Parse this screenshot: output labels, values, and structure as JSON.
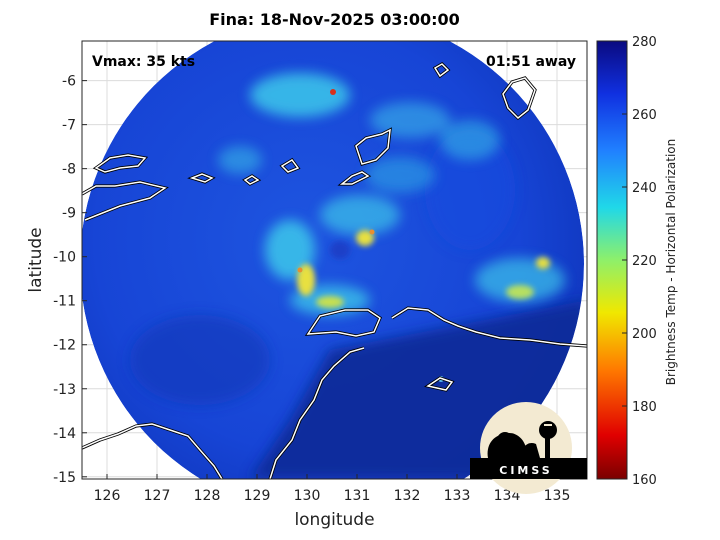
{
  "title": "Fina: 18-Nov-2025 03:00:00",
  "vmax_label": "Vmax: 35 kts",
  "away_label": "01:51 away",
  "xlabel": "longitude",
  "ylabel": "latitude",
  "colorbar": {
    "label": "Brightness Temp - Horizontal Polarization",
    "min": 160,
    "max": 280,
    "ticks": [
      "160",
      "180",
      "200",
      "220",
      "240",
      "260",
      "280"
    ]
  },
  "axes": {
    "xlim": [
      125.5,
      135.6
    ],
    "ylim": [
      -15.05,
      -5.1
    ],
    "xticks": [
      "126",
      "127",
      "128",
      "129",
      "130",
      "131",
      "132",
      "133",
      "134",
      "135"
    ],
    "yticks": [
      "-6",
      "-7",
      "-8",
      "-9",
      "-10",
      "-11",
      "-12",
      "-13",
      "-14",
      "-15"
    ],
    "grid": true
  },
  "logo": {
    "text": "CIMSS",
    "icon": "cimss-observatory-logo-icon"
  },
  "colors": {
    "deep": "#0a2a9a",
    "mid": "#1747d6",
    "cyan": "#3ec8ea",
    "yellow": "#e8e040",
    "red": "#d8301a",
    "coast": "#ffffff"
  }
}
